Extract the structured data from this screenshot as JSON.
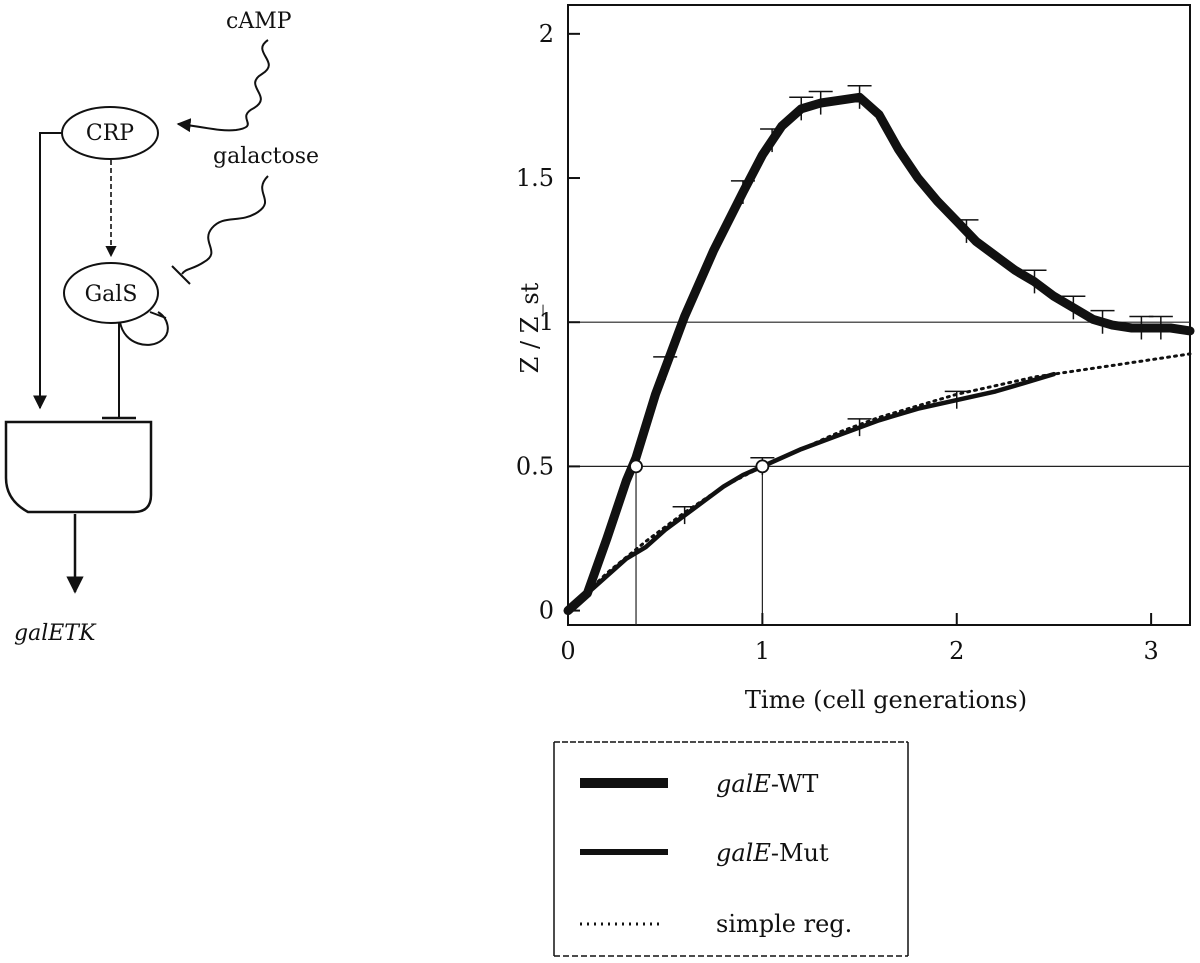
{
  "diagram": {
    "signals": {
      "camp": "cAMP",
      "galactose": "galactose"
    },
    "nodes": {
      "crp": "CRP",
      "gals": "GalS"
    },
    "output": "galETK"
  },
  "chart_data": {
    "type": "line",
    "xlabel": "Time (cell generations)",
    "ylabel": "Z / Z_st",
    "xlim": [
      0,
      3.2
    ],
    "ylim": [
      -0.05,
      2.1
    ],
    "xticks": [
      0,
      1,
      2,
      3
    ],
    "yticks": [
      0,
      0.5,
      1,
      1.5,
      2
    ],
    "gridlines_y": [
      0.5,
      1
    ],
    "series": [
      {
        "name": "galE-WT",
        "name_italic": "galE",
        "name_rest": "-WT",
        "style": "thick",
        "x": [
          0,
          0.1,
          0.2,
          0.3,
          0.35,
          0.45,
          0.6,
          0.75,
          0.9,
          1.0,
          1.1,
          1.2,
          1.3,
          1.4,
          1.5,
          1.6,
          1.7,
          1.8,
          1.9,
          2.0,
          2.1,
          2.2,
          2.3,
          2.4,
          2.5,
          2.6,
          2.7,
          2.8,
          2.9,
          3.0,
          3.1,
          3.2
        ],
        "y": [
          0,
          0.06,
          0.25,
          0.45,
          0.53,
          0.75,
          1.02,
          1.25,
          1.45,
          1.58,
          1.68,
          1.74,
          1.76,
          1.77,
          1.78,
          1.72,
          1.6,
          1.5,
          1.42,
          1.35,
          1.28,
          1.23,
          1.18,
          1.14,
          1.09,
          1.05,
          1.01,
          0.99,
          0.98,
          0.98,
          0.98,
          0.97
        ],
        "error_x": [
          0.5,
          0.9,
          1.05,
          1.2,
          1.3,
          1.5,
          2.05,
          2.4,
          2.6,
          2.75,
          2.95,
          3.05
        ],
        "error_halfwidth": 0.04
      },
      {
        "name": "galE-Mut",
        "name_italic": "galE",
        "name_rest": "-Mut",
        "style": "medium",
        "x": [
          0,
          0.1,
          0.2,
          0.3,
          0.4,
          0.5,
          0.6,
          0.7,
          0.8,
          0.9,
          1.0,
          1.2,
          1.4,
          1.6,
          1.8,
          2.0,
          2.2,
          2.35,
          2.5
        ],
        "y": [
          0,
          0.06,
          0.12,
          0.18,
          0.22,
          0.28,
          0.33,
          0.38,
          0.43,
          0.47,
          0.5,
          0.56,
          0.61,
          0.66,
          0.7,
          0.73,
          0.76,
          0.79,
          0.82
        ],
        "error_x": [
          0.6,
          1.0,
          1.5,
          2.0
        ],
        "error_halfwidth": 0.03
      },
      {
        "name": "simple reg.",
        "style": "dotted",
        "x": [
          0,
          0.2,
          0.4,
          0.6,
          0.8,
          1.0,
          1.2,
          1.4,
          1.6,
          1.8,
          2.0,
          2.2,
          2.4,
          2.6,
          2.8,
          3.0,
          3.2
        ],
        "y": [
          0,
          0.13,
          0.24,
          0.34,
          0.43,
          0.5,
          0.56,
          0.62,
          0.67,
          0.71,
          0.75,
          0.78,
          0.81,
          0.83,
          0.85,
          0.87,
          0.89
        ]
      }
    ],
    "markers": [
      {
        "x": 0.35,
        "y": 0.5
      },
      {
        "x": 1.0,
        "y": 0.5
      }
    ],
    "legend_position": "below"
  }
}
